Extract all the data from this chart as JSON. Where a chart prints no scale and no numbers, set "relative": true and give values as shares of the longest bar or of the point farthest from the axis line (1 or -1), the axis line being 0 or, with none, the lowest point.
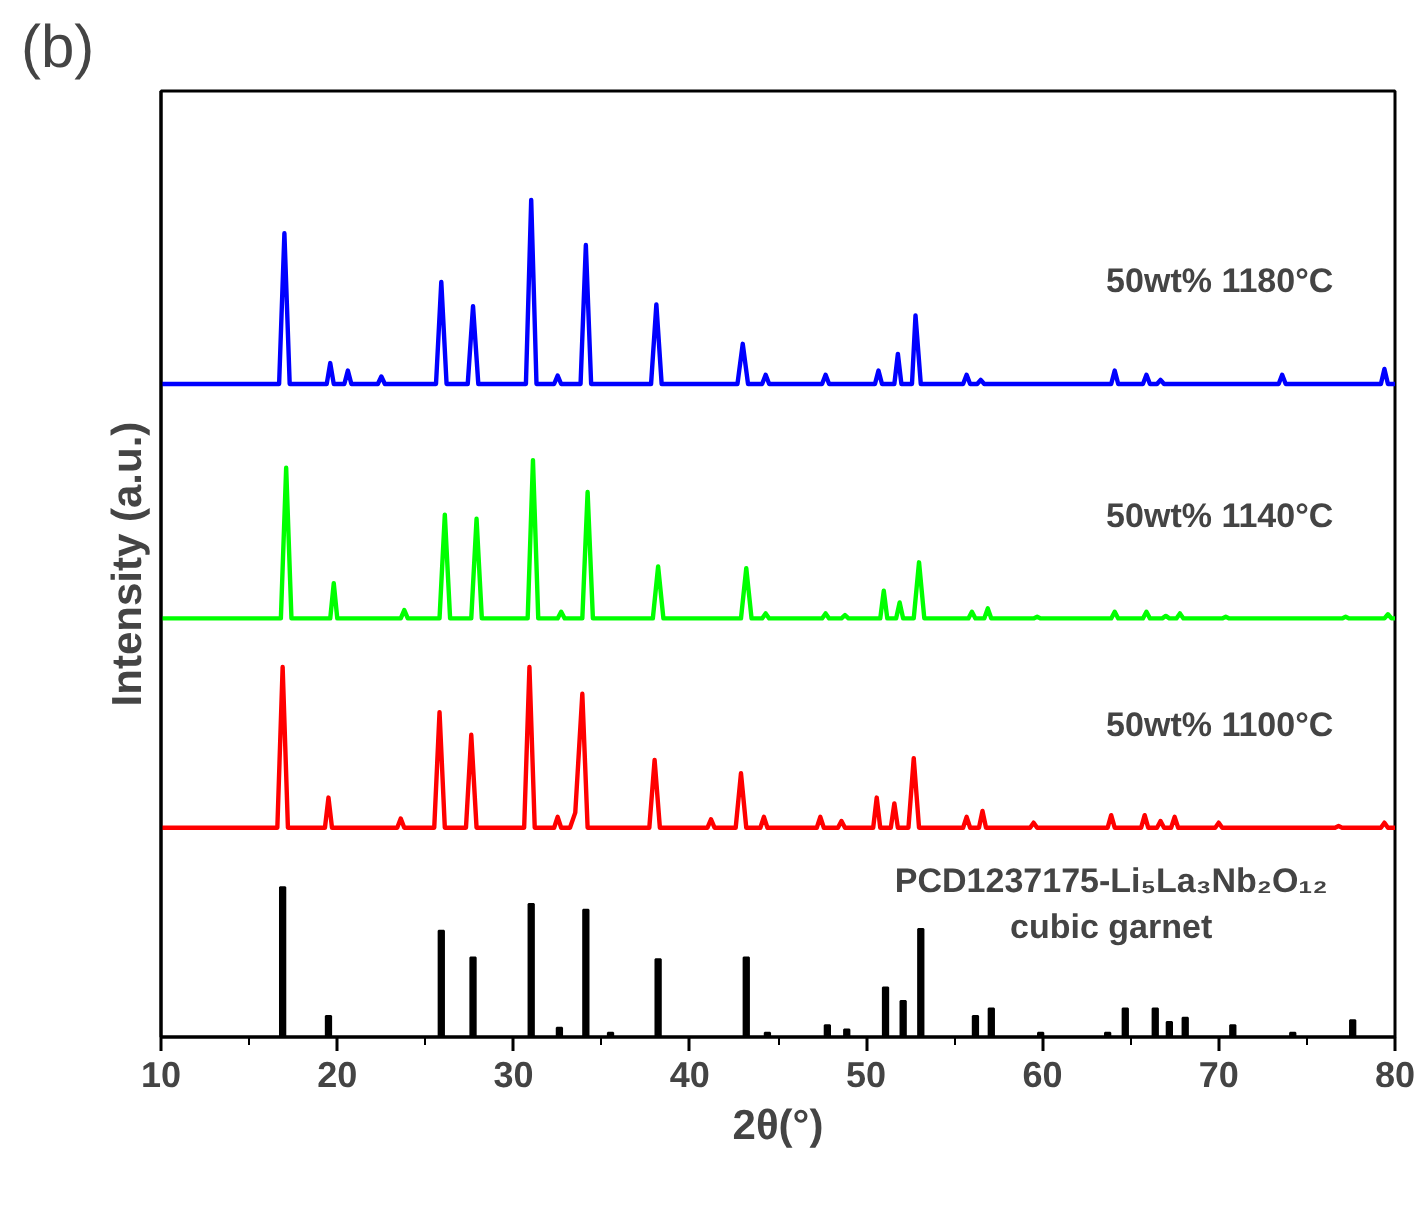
{
  "chart_data": {
    "type": "line",
    "title": "(b)",
    "xlabel": "2θ(°)",
    "ylabel": "Intensity (a.u.)",
    "relative": true,
    "grid": false,
    "xlim": [
      10,
      80
    ],
    "xticks": [
      10,
      20,
      30,
      40,
      50,
      60,
      70,
      80
    ],
    "series": [
      {
        "name": "50wt% 1180°C",
        "color": "#0000ff",
        "x": [
          10,
          16.7,
          17.0,
          17.3,
          19.4,
          19.6,
          19.8,
          20.4,
          20.6,
          20.8,
          22.3,
          22.5,
          22.7,
          25.6,
          25.9,
          26.2,
          27.4,
          27.7,
          28.0,
          30.7,
          31.0,
          31.3,
          32.3,
          32.5,
          32.7,
          33.8,
          34.1,
          34.4,
          37.8,
          38.1,
          38.4,
          42.7,
          43.0,
          43.3,
          44.1,
          44.3,
          44.5,
          47.5,
          47.7,
          47.9,
          50.5,
          50.7,
          50.9,
          51.6,
          51.8,
          52.0,
          52.6,
          52.8,
          53.1,
          55.5,
          55.7,
          55.9,
          56.3,
          56.5,
          56.7,
          63.9,
          64.1,
          64.3,
          65.7,
          65.9,
          66.1,
          66.5,
          66.7,
          66.9,
          73.4,
          73.6,
          73.8,
          79.2,
          79.4,
          79.6,
          80
        ],
        "values": [
          0.78,
          0.78,
          0.96,
          0.78,
          0.78,
          0.805,
          0.78,
          0.78,
          0.796,
          0.78,
          0.78,
          0.789,
          0.78,
          0.78,
          0.902,
          0.78,
          0.78,
          0.873,
          0.78,
          0.78,
          1.0,
          0.78,
          0.78,
          0.79,
          0.78,
          0.78,
          0.946,
          0.78,
          0.78,
          0.875,
          0.78,
          0.78,
          0.828,
          0.78,
          0.78,
          0.791,
          0.78,
          0.78,
          0.791,
          0.78,
          0.78,
          0.796,
          0.78,
          0.78,
          0.816,
          0.78,
          0.78,
          0.862,
          0.78,
          0.78,
          0.791,
          0.78,
          0.78,
          0.785,
          0.78,
          0.78,
          0.796,
          0.78,
          0.78,
          0.791,
          0.78,
          0.78,
          0.785,
          0.78,
          0.78,
          0.791,
          0.78,
          0.78,
          0.798,
          0.78,
          0.78
        ]
      },
      {
        "name": "50wt% 1140°C",
        "color": "#00ff00",
        "x": [
          10,
          16.8,
          17.1,
          17.4,
          19.6,
          19.8,
          20.0,
          23.6,
          23.8,
          24.0,
          25.8,
          26.1,
          26.4,
          27.6,
          27.9,
          28.2,
          30.8,
          31.1,
          31.4,
          32.5,
          32.7,
          32.9,
          33.9,
          34.2,
          34.5,
          37.9,
          38.2,
          38.5,
          42.9,
          43.2,
          43.5,
          44.1,
          44.3,
          44.5,
          47.5,
          47.7,
          47.9,
          48.6,
          48.8,
          49.0,
          50.8,
          51.0,
          51.2,
          51.7,
          51.9,
          52.1,
          52.7,
          53.0,
          53.3,
          55.8,
          56.0,
          56.2,
          56.7,
          56.9,
          57.1,
          59.5,
          59.7,
          59.9,
          63.9,
          64.1,
          64.3,
          65.7,
          65.9,
          66.1,
          66.8,
          67.0,
          67.2,
          67.6,
          67.8,
          68.0,
          70.2,
          70.4,
          70.6,
          77.0,
          77.2,
          77.4,
          79.4,
          79.6,
          79.8,
          80
        ],
        "values": [
          0.5,
          0.5,
          0.68,
          0.5,
          0.5,
          0.542,
          0.5,
          0.5,
          0.51,
          0.5,
          0.5,
          0.624,
          0.5,
          0.5,
          0.619,
          0.5,
          0.5,
          0.689,
          0.5,
          0.5,
          0.508,
          0.5,
          0.5,
          0.651,
          0.5,
          0.5,
          0.562,
          0.5,
          0.5,
          0.56,
          0.5,
          0.5,
          0.506,
          0.5,
          0.5,
          0.506,
          0.5,
          0.5,
          0.504,
          0.5,
          0.5,
          0.533,
          0.5,
          0.5,
          0.519,
          0.5,
          0.5,
          0.567,
          0.5,
          0.5,
          0.508,
          0.5,
          0.5,
          0.512,
          0.5,
          0.5,
          0.502,
          0.5,
          0.5,
          0.508,
          0.5,
          0.5,
          0.508,
          0.5,
          0.5,
          0.503,
          0.5,
          0.5,
          0.506,
          0.5,
          0.5,
          0.502,
          0.5,
          0.5,
          0.502,
          0.5,
          0.5,
          0.505,
          0.5,
          0.5
        ]
      },
      {
        "name": "50wt% 1100°C",
        "color": "#ff0000",
        "x": [
          10,
          16.6,
          16.9,
          17.2,
          19.3,
          19.5,
          19.7,
          23.4,
          23.6,
          23.8,
          25.5,
          25.8,
          26.1,
          27.3,
          27.6,
          27.9,
          30.6,
          30.9,
          31.2,
          32.3,
          32.5,
          32.7,
          33.2,
          33.5,
          33.9,
          34.2,
          37.7,
          38.0,
          38.3,
          41.0,
          41.2,
          41.4,
          42.6,
          42.9,
          43.2,
          44.0,
          44.2,
          44.4,
          47.2,
          47.4,
          47.6,
          48.4,
          48.6,
          48.8,
          50.4,
          50.6,
          50.8,
          51.4,
          51.6,
          51.8,
          52.4,
          52.7,
          53.0,
          55.5,
          55.7,
          55.9,
          56.4,
          56.6,
          56.8,
          59.3,
          59.5,
          59.7,
          63.7,
          63.9,
          64.1,
          65.6,
          65.8,
          66.0,
          66.5,
          66.7,
          66.9,
          67.3,
          67.5,
          67.7,
          69.8,
          70.0,
          70.2,
          76.6,
          76.8,
          77.0,
          79.2,
          79.4,
          79.6,
          80
        ],
        "values": [
          0.25,
          0.25,
          0.442,
          0.25,
          0.25,
          0.286,
          0.25,
          0.25,
          0.261,
          0.25,
          0.25,
          0.388,
          0.25,
          0.25,
          0.361,
          0.25,
          0.25,
          0.442,
          0.25,
          0.25,
          0.263,
          0.25,
          0.25,
          0.268,
          0.41,
          0.25,
          0.25,
          0.331,
          0.25,
          0.25,
          0.26,
          0.25,
          0.25,
          0.315,
          0.25,
          0.25,
          0.263,
          0.25,
          0.25,
          0.263,
          0.25,
          0.25,
          0.258,
          0.25,
          0.25,
          0.286,
          0.25,
          0.25,
          0.279,
          0.25,
          0.25,
          0.333,
          0.25,
          0.25,
          0.263,
          0.25,
          0.25,
          0.27,
          0.25,
          0.25,
          0.256,
          0.25,
          0.25,
          0.265,
          0.25,
          0.25,
          0.265,
          0.25,
          0.25,
          0.258,
          0.25,
          0.25,
          0.263,
          0.25,
          0.25,
          0.256,
          0.25,
          0.25,
          0.252,
          0.25,
          0.25,
          0.256,
          0.25,
          0.25
        ]
      },
      {
        "name": "PCD1237175-Li₅La₃Nb₂O₁₂\ncubic garnet",
        "color": "#000000",
        "type": "bar",
        "x": [
          16.9,
          19.5,
          25.9,
          27.7,
          31.0,
          32.6,
          34.1,
          35.5,
          38.2,
          43.2,
          44.4,
          47.8,
          48.9,
          51.1,
          52.1,
          53.1,
          56.2,
          57.1,
          59.9,
          63.7,
          64.7,
          66.4,
          67.2,
          68.1,
          70.8,
          74.2,
          77.6
        ],
        "values": [
          0.179,
          0.025,
          0.127,
          0.095,
          0.159,
          0.011,
          0.152,
          0.005,
          0.093,
          0.095,
          0.005,
          0.014,
          0.009,
          0.059,
          0.043,
          0.129,
          0.025,
          0.034,
          0.005,
          0.005,
          0.034,
          0.034,
          0.018,
          0.023,
          0.014,
          0.005,
          0.02
        ]
      }
    ]
  }
}
